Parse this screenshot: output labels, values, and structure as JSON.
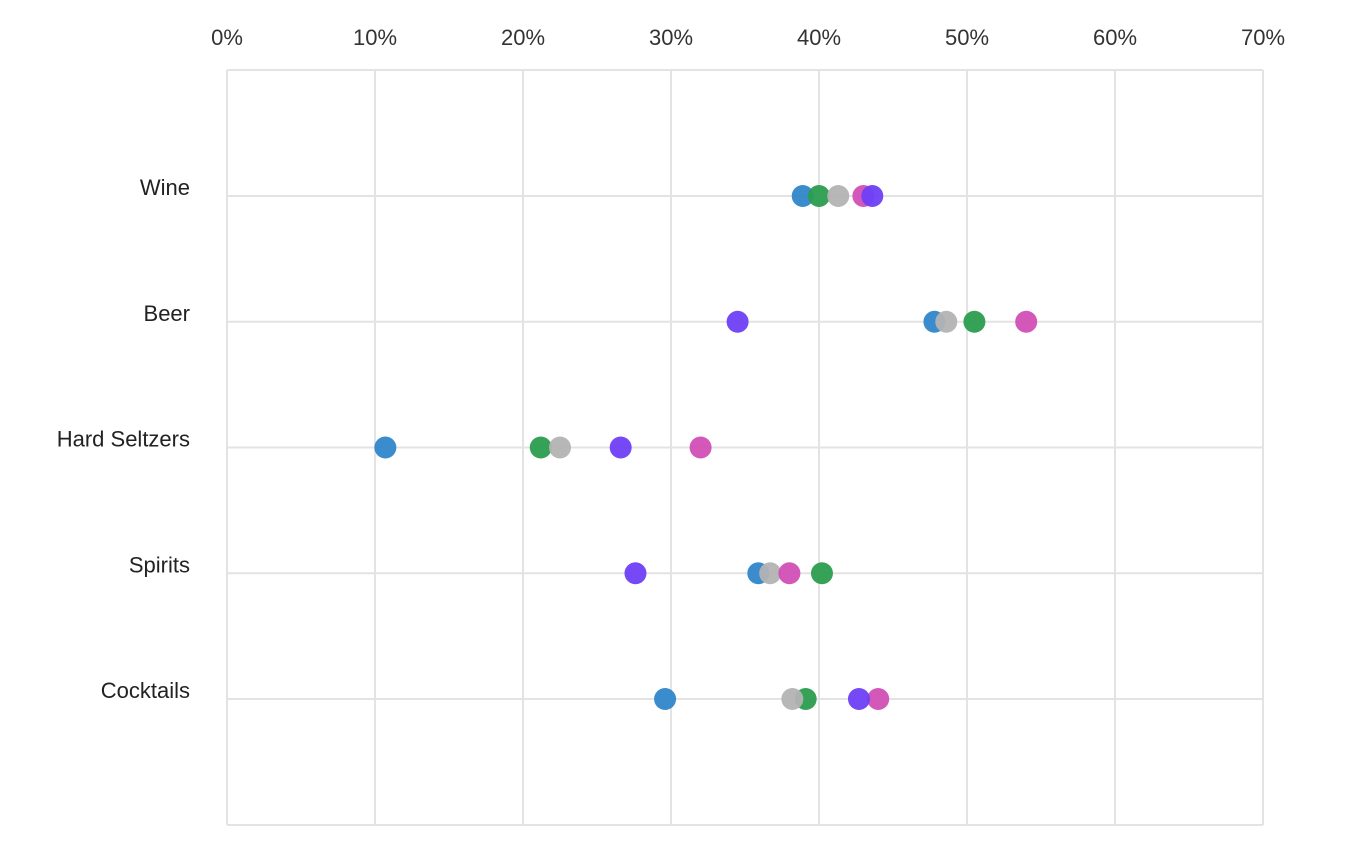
{
  "chart_data": {
    "type": "scatter",
    "orientation": "horizontal-dot-plot",
    "title": "",
    "xlabel": "",
    "ylabel": "",
    "xlim": [
      0,
      70
    ],
    "x_ticks": [
      "0%",
      "10%",
      "20%",
      "30%",
      "40%",
      "50%",
      "60%",
      "70%"
    ],
    "x_tick_values": [
      0,
      10,
      20,
      30,
      40,
      50,
      60,
      70
    ],
    "x_axis_position": "top",
    "grid": true,
    "legend": "none",
    "categories": [
      "Wine",
      "Beer",
      "Hard Seltzers",
      "Spirits",
      "Cocktails"
    ],
    "series": [
      {
        "color": "#2f86c9",
        "values": [
          38.9,
          47.8,
          10.7,
          35.9,
          29.6
        ]
      },
      {
        "color": "#2a9d4e",
        "values": [
          40.0,
          50.5,
          21.2,
          40.2,
          39.1
        ]
      },
      {
        "color": "#b3b3b3",
        "values": [
          41.3,
          48.6,
          22.5,
          36.7,
          38.2
        ]
      },
      {
        "color": "#d14fb5",
        "values": [
          43.0,
          54.0,
          32.0,
          38.0,
          44.0
        ]
      },
      {
        "color": "#6e3ff5",
        "values": [
          43.6,
          34.5,
          26.6,
          27.6,
          42.7
        ]
      }
    ]
  }
}
